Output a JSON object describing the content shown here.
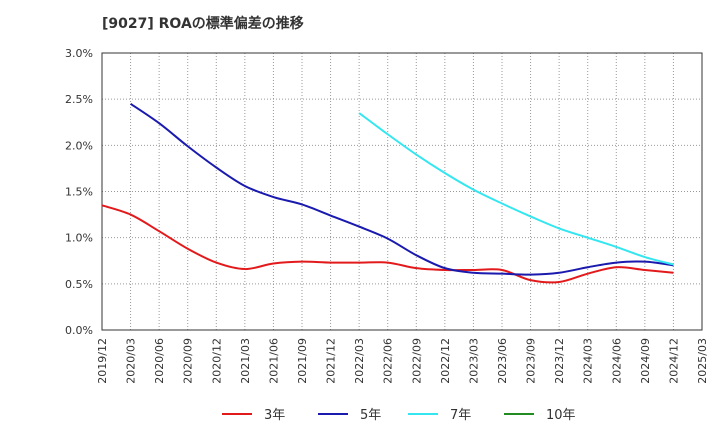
{
  "chart_data": {
    "type": "line",
    "title": "[9027]  ROAの標準偏差の推移",
    "xlabel": "",
    "ylabel": "",
    "x_ticks": [
      "2019/12",
      "2020/03",
      "2020/06",
      "2020/09",
      "2020/12",
      "2021/03",
      "2021/06",
      "2021/09",
      "2021/12",
      "2022/03",
      "2022/06",
      "2022/09",
      "2022/12",
      "2023/03",
      "2023/06",
      "2023/09",
      "2023/12",
      "2024/03",
      "2024/06",
      "2024/09",
      "2024/12",
      "2025/03"
    ],
    "y_ticks": [
      "0.0%",
      "0.5%",
      "1.0%",
      "1.5%",
      "2.0%",
      "2.5%",
      "3.0%"
    ],
    "ylim": [
      0,
      3.0
    ],
    "grid": true,
    "legend_position": "bottom",
    "series": [
      {
        "name": "3年",
        "color": "#e31a1c",
        "x": [
          "2019/12",
          "2020/03",
          "2020/06",
          "2020/09",
          "2020/12",
          "2021/03",
          "2021/06",
          "2021/09",
          "2021/12",
          "2022/03",
          "2022/06",
          "2022/09",
          "2022/12",
          "2023/03",
          "2023/06",
          "2023/09",
          "2023/12",
          "2024/03",
          "2024/06",
          "2024/09",
          "2024/12"
        ],
        "values": [
          1.35,
          1.25,
          1.07,
          0.88,
          0.73,
          0.66,
          0.72,
          0.74,
          0.73,
          0.73,
          0.73,
          0.67,
          0.65,
          0.65,
          0.65,
          0.54,
          0.52,
          0.61,
          0.68,
          0.65,
          0.62
        ]
      },
      {
        "name": "5年",
        "color": "#1a1aae",
        "x": [
          "2020/03",
          "2020/06",
          "2020/09",
          "2020/12",
          "2021/03",
          "2021/06",
          "2021/09",
          "2021/12",
          "2022/03",
          "2022/06",
          "2022/09",
          "2022/12",
          "2023/03",
          "2023/06",
          "2023/09",
          "2023/12",
          "2024/03",
          "2024/06",
          "2024/09",
          "2024/12"
        ],
        "values": [
          2.45,
          2.24,
          1.99,
          1.76,
          1.56,
          1.44,
          1.36,
          1.24,
          1.12,
          0.99,
          0.81,
          0.67,
          0.62,
          0.61,
          0.6,
          0.62,
          0.68,
          0.73,
          0.74,
          0.7
        ]
      },
      {
        "name": "7年",
        "color": "#33e6f0",
        "x": [
          "2022/03",
          "2022/06",
          "2022/09",
          "2022/12",
          "2023/03",
          "2023/06",
          "2023/09",
          "2023/12",
          "2024/03",
          "2024/06",
          "2024/09",
          "2024/12"
        ],
        "values": [
          2.35,
          2.12,
          1.9,
          1.7,
          1.52,
          1.37,
          1.23,
          1.1,
          1.0,
          0.9,
          0.79,
          0.71
        ]
      },
      {
        "name": "10年",
        "color": "#228b22",
        "x": [],
        "values": []
      }
    ]
  }
}
